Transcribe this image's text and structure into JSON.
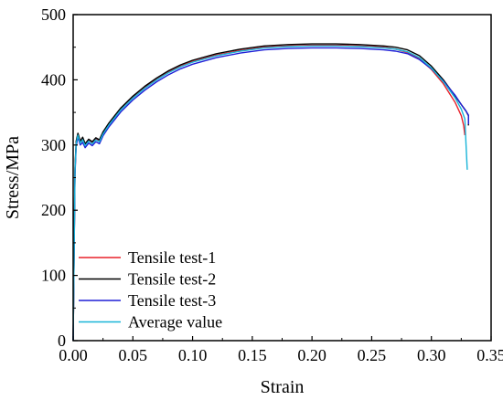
{
  "chart_data": {
    "type": "line",
    "title": "",
    "xlabel": "Strain",
    "ylabel": "Stress/MPa",
    "xlim": [
      0,
      0.35
    ],
    "ylim": [
      0,
      500
    ],
    "xticks": [
      "0.00",
      "0.05",
      "0.10",
      "0.15",
      "0.20",
      "0.25",
      "0.30",
      "0.35"
    ],
    "xtick_values": [
      0,
      0.05,
      0.1,
      0.15,
      0.2,
      0.25,
      0.3,
      0.35
    ],
    "yticks": [
      "0",
      "100",
      "200",
      "300",
      "400",
      "500"
    ],
    "ytick_values": [
      0,
      100,
      200,
      300,
      400,
      500
    ],
    "grid": false,
    "legend_position": "bottom-left",
    "series": [
      {
        "name": "Tensile test-1",
        "color": "#e8202a",
        "x": [
          0,
          0.0015,
          0.0025,
          0.004,
          0.006,
          0.008,
          0.01,
          0.013,
          0.016,
          0.019,
          0.022,
          0.025,
          0.03,
          0.04,
          0.05,
          0.06,
          0.07,
          0.08,
          0.09,
          0.1,
          0.12,
          0.14,
          0.16,
          0.18,
          0.2,
          0.22,
          0.24,
          0.26,
          0.27,
          0.28,
          0.29,
          0.3,
          0.31,
          0.32,
          0.325,
          0.327,
          0.328
        ],
        "y": [
          0,
          260,
          302,
          315,
          304,
          308,
          300,
          307,
          303,
          309,
          306,
          318,
          332,
          355,
          373,
          388,
          401,
          412,
          421,
          428,
          438,
          445,
          450,
          452,
          453,
          453,
          452,
          450,
          447,
          442,
          432,
          416,
          394,
          365,
          345,
          330,
          315
        ]
      },
      {
        "name": "Tensile test-2",
        "color": "#000000",
        "x": [
          0,
          0.0015,
          0.0025,
          0.004,
          0.006,
          0.008,
          0.01,
          0.013,
          0.016,
          0.019,
          0.022,
          0.025,
          0.03,
          0.04,
          0.05,
          0.06,
          0.07,
          0.08,
          0.09,
          0.1,
          0.12,
          0.14,
          0.16,
          0.18,
          0.2,
          0.22,
          0.24,
          0.26,
          0.27,
          0.28,
          0.29,
          0.3,
          0.31,
          0.32,
          0.325,
          0.329,
          0.331,
          0.331
        ],
        "y": [
          0,
          265,
          306,
          318,
          306,
          312,
          302,
          309,
          305,
          311,
          308,
          320,
          334,
          357,
          375,
          390,
          403,
          414,
          423,
          430,
          440,
          447,
          452,
          454,
          455,
          455,
          454,
          452,
          450,
          446,
          437,
          421,
          400,
          375,
          362,
          352,
          345,
          330
        ]
      },
      {
        "name": "Tensile test-3",
        "color": "#1f1fd6",
        "x": [
          0,
          0.0015,
          0.0025,
          0.004,
          0.006,
          0.008,
          0.01,
          0.013,
          0.016,
          0.019,
          0.022,
          0.025,
          0.03,
          0.04,
          0.05,
          0.06,
          0.07,
          0.08,
          0.09,
          0.1,
          0.12,
          0.14,
          0.16,
          0.18,
          0.2,
          0.22,
          0.24,
          0.26,
          0.27,
          0.28,
          0.29,
          0.3,
          0.31,
          0.32,
          0.325,
          0.329,
          0.331,
          0.331
        ],
        "y": [
          0,
          255,
          298,
          312,
          300,
          304,
          296,
          303,
          299,
          305,
          302,
          314,
          328,
          351,
          369,
          384,
          397,
          408,
          417,
          424,
          434,
          441,
          446,
          448,
          449,
          449,
          448,
          446,
          444,
          440,
          431,
          417,
          398,
          376,
          362,
          352,
          346,
          332
        ]
      },
      {
        "name": "Average value",
        "color": "#18b4d8",
        "x": [
          0,
          0.0015,
          0.0025,
          0.004,
          0.006,
          0.008,
          0.01,
          0.013,
          0.016,
          0.019,
          0.022,
          0.025,
          0.03,
          0.04,
          0.05,
          0.06,
          0.07,
          0.08,
          0.09,
          0.1,
          0.12,
          0.14,
          0.16,
          0.18,
          0.2,
          0.22,
          0.24,
          0.26,
          0.27,
          0.28,
          0.29,
          0.3,
          0.31,
          0.32,
          0.325,
          0.328,
          0.329,
          0.33
        ],
        "y": [
          0,
          260,
          302,
          315,
          303,
          308,
          299,
          306,
          302,
          308,
          305,
          317,
          331,
          354,
          372,
          387,
          400,
          411,
          420,
          427,
          437,
          444,
          449,
          451,
          452,
          452,
          451,
          449,
          447,
          443,
          434,
          418,
          397,
          372,
          355,
          340,
          300,
          262
        ]
      }
    ]
  }
}
